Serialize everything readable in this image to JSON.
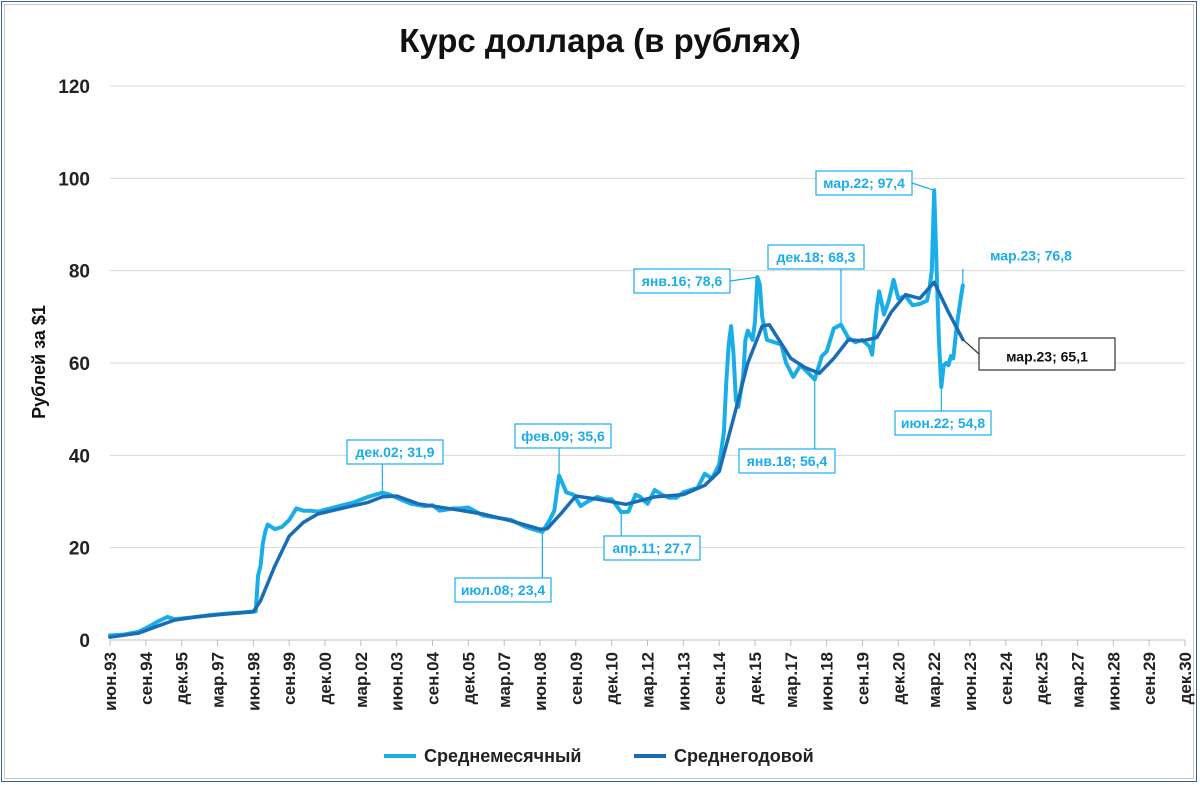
{
  "chart_data": {
    "type": "line",
    "title": "Курс доллара (в рублях)",
    "ylabel": "Рублей за $1",
    "xlabel": "",
    "ylim": [
      0,
      120
    ],
    "y_ticks": [
      0,
      20,
      40,
      60,
      80,
      100,
      120
    ],
    "x_range": [
      "1993-06",
      "2030-12"
    ],
    "x_ticks": [
      "июн.93",
      "сен.94",
      "дек.95",
      "мар.97",
      "июн.98",
      "сен.99",
      "дек.00",
      "мар.02",
      "июн.03",
      "сен.04",
      "дек.05",
      "мар.07",
      "июн.08",
      "сен.09",
      "дек.10",
      "мар.12",
      "июн.13",
      "сен.14",
      "дек.15",
      "мар.17",
      "июн.18",
      "сен.19",
      "дек.20",
      "мар.22",
      "июн.23",
      "сен.24",
      "дек.25",
      "мар.27",
      "июн.28",
      "сен.29",
      "дек.30"
    ],
    "grid": "horizontal",
    "legend_position": "bottom",
    "colors": {
      "monthly": "#1aaee8",
      "yearly": "#1a6db5",
      "axis": "#d9d9d9"
    },
    "series": [
      {
        "name": "Среднемесячный",
        "color": "#1aaee8",
        "points": [
          [
            "1993-06",
            1.0
          ],
          [
            "1993-12",
            1.2
          ],
          [
            "1994-06",
            1.8
          ],
          [
            "1994-10",
            2.8
          ],
          [
            "1995-02",
            4.0
          ],
          [
            "1995-06",
            5.0
          ],
          [
            "1995-09",
            4.5
          ],
          [
            "1996-03",
            4.8
          ],
          [
            "1996-12",
            5.4
          ],
          [
            "1997-06",
            5.7
          ],
          [
            "1997-12",
            5.9
          ],
          [
            "1998-05",
            6.1
          ],
          [
            "1998-07",
            6.2
          ],
          [
            "1998-08",
            14.0
          ],
          [
            "1998-09",
            16.0
          ],
          [
            "1998-10",
            21.0
          ],
          [
            "1998-11",
            23.5
          ],
          [
            "1998-12",
            25.0
          ],
          [
            "1999-03",
            24.0
          ],
          [
            "1999-06",
            24.5
          ],
          [
            "1999-09",
            26.0
          ],
          [
            "1999-12",
            28.5
          ],
          [
            "2000-03",
            28.0
          ],
          [
            "2000-06",
            28.0
          ],
          [
            "2000-09",
            27.8
          ],
          [
            "2000-12",
            28.2
          ],
          [
            "2001-06",
            29.0
          ],
          [
            "2001-12",
            29.8
          ],
          [
            "2002-06",
            31.0
          ],
          [
            "2002-12",
            31.9
          ],
          [
            "2003-03",
            31.5
          ],
          [
            "2003-06",
            30.8
          ],
          [
            "2003-12",
            29.5
          ],
          [
            "2004-06",
            29.0
          ],
          [
            "2004-09",
            29.2
          ],
          [
            "2004-12",
            28.0
          ],
          [
            "2005-06",
            28.5
          ],
          [
            "2005-09",
            28.5
          ],
          [
            "2005-12",
            28.7
          ],
          [
            "2006-06",
            27.0
          ],
          [
            "2006-12",
            26.5
          ],
          [
            "2007-06",
            26.0
          ],
          [
            "2007-12",
            24.5
          ],
          [
            "2008-03",
            24.0
          ],
          [
            "2008-07",
            23.4
          ],
          [
            "2008-10",
            26.0
          ],
          [
            "2008-12",
            28.0
          ],
          [
            "2009-02",
            35.6
          ],
          [
            "2009-05",
            32.0
          ],
          [
            "2009-08",
            31.5
          ],
          [
            "2009-11",
            29.0
          ],
          [
            "2010-02",
            30.0
          ],
          [
            "2010-06",
            31.0
          ],
          [
            "2010-09",
            30.5
          ],
          [
            "2010-12",
            30.5
          ],
          [
            "2011-04",
            27.7
          ],
          [
            "2011-07",
            27.8
          ],
          [
            "2011-10",
            31.5
          ],
          [
            "2011-12",
            31.0
          ],
          [
            "2012-03",
            29.5
          ],
          [
            "2012-06",
            32.5
          ],
          [
            "2012-09",
            31.5
          ],
          [
            "2012-12",
            30.8
          ],
          [
            "2013-03",
            30.8
          ],
          [
            "2013-06",
            32.0
          ],
          [
            "2013-09",
            32.5
          ],
          [
            "2013-12",
            33.0
          ],
          [
            "2014-03",
            36.0
          ],
          [
            "2014-06",
            35.0
          ],
          [
            "2014-09",
            38.0
          ],
          [
            "2014-11",
            45.0
          ],
          [
            "2014-12",
            56.0
          ],
          [
            "2015-01",
            64.0
          ],
          [
            "2015-02",
            68.0
          ],
          [
            "2015-03",
            62.0
          ],
          [
            "2015-04",
            52.0
          ],
          [
            "2015-05",
            50.5
          ],
          [
            "2015-07",
            57.0
          ],
          [
            "2015-08",
            65.0
          ],
          [
            "2015-09",
            67.0
          ],
          [
            "2015-11",
            65.0
          ],
          [
            "2015-12",
            69.0
          ],
          [
            "2016-01",
            78.6
          ],
          [
            "2016-02",
            77.0
          ],
          [
            "2016-03",
            70.0
          ],
          [
            "2016-05",
            65.0
          ],
          [
            "2016-08",
            64.5
          ],
          [
            "2016-11",
            64.0
          ],
          [
            "2017-01",
            60.0
          ],
          [
            "2017-04",
            57.0
          ],
          [
            "2017-07",
            59.5
          ],
          [
            "2017-10",
            58.0
          ],
          [
            "2018-01",
            56.4
          ],
          [
            "2018-04",
            61.5
          ],
          [
            "2018-06",
            62.5
          ],
          [
            "2018-09",
            67.5
          ],
          [
            "2018-12",
            68.3
          ],
          [
            "2019-03",
            65.5
          ],
          [
            "2019-06",
            64.5
          ],
          [
            "2019-09",
            65.0
          ],
          [
            "2019-12",
            63.5
          ],
          [
            "2020-01",
            61.8
          ],
          [
            "2020-03",
            72.0
          ],
          [
            "2020-04",
            75.5
          ],
          [
            "2020-06",
            70.5
          ],
          [
            "2020-08",
            73.5
          ],
          [
            "2020-10",
            78.0
          ],
          [
            "2020-12",
            74.0
          ],
          [
            "2021-03",
            74.5
          ],
          [
            "2021-06",
            72.5
          ],
          [
            "2021-09",
            72.8
          ],
          [
            "2021-12",
            73.5
          ],
          [
            "2022-01",
            76.0
          ],
          [
            "2022-02",
            80.0
          ],
          [
            "2022-03",
            97.4
          ],
          [
            "2022-04",
            80.5
          ],
          [
            "2022-05",
            65.0
          ],
          [
            "2022-06",
            54.8
          ],
          [
            "2022-07",
            59.5
          ],
          [
            "2022-08",
            60.0
          ],
          [
            "2022-09",
            59.5
          ],
          [
            "2022-10",
            61.5
          ],
          [
            "2022-11",
            61.0
          ],
          [
            "2022-12",
            66.0
          ],
          [
            "2023-01",
            70.0
          ],
          [
            "2023-02",
            73.5
          ],
          [
            "2023-03",
            76.8
          ]
        ]
      },
      {
        "name": "Среднегодовой",
        "color": "#1a6db5",
        "points": [
          [
            "1993-06",
            0.6
          ],
          [
            "1994-06",
            1.5
          ],
          [
            "1995-03",
            3.2
          ],
          [
            "1995-09",
            4.3
          ],
          [
            "1996-06",
            5.0
          ],
          [
            "1997-06",
            5.6
          ],
          [
            "1998-06",
            6.1
          ],
          [
            "1998-09",
            8.5
          ],
          [
            "1999-03",
            16.0
          ],
          [
            "1999-09",
            22.5
          ],
          [
            "2000-03",
            25.5
          ],
          [
            "2000-09",
            27.3
          ],
          [
            "2001-06",
            28.4
          ],
          [
            "2002-06",
            29.8
          ],
          [
            "2002-12",
            31.0
          ],
          [
            "2003-06",
            31.2
          ],
          [
            "2004-03",
            29.5
          ],
          [
            "2005-06",
            28.3
          ],
          [
            "2006-06",
            27.3
          ],
          [
            "2007-06",
            25.8
          ],
          [
            "2008-06",
            24.0
          ],
          [
            "2008-09",
            24.1
          ],
          [
            "2009-03",
            27.5
          ],
          [
            "2009-09",
            31.2
          ],
          [
            "2010-06",
            30.5
          ],
          [
            "2011-06",
            29.4
          ],
          [
            "2012-06",
            31.0
          ],
          [
            "2013-06",
            31.5
          ],
          [
            "2014-03",
            33.5
          ],
          [
            "2014-09",
            36.5
          ],
          [
            "2015-03",
            48.0
          ],
          [
            "2015-09",
            60.0
          ],
          [
            "2016-03",
            68.0
          ],
          [
            "2016-06",
            68.3
          ],
          [
            "2017-03",
            61.0
          ],
          [
            "2017-09",
            59.0
          ],
          [
            "2018-03",
            57.8
          ],
          [
            "2018-09",
            61.0
          ],
          [
            "2019-03",
            65.0
          ],
          [
            "2019-09",
            64.8
          ],
          [
            "2020-03",
            65.5
          ],
          [
            "2020-09",
            71.0
          ],
          [
            "2021-03",
            74.8
          ],
          [
            "2021-09",
            74.0
          ],
          [
            "2022-03",
            77.5
          ],
          [
            "2022-09",
            71.0
          ],
          [
            "2023-03",
            65.1
          ]
        ]
      }
    ],
    "annotations": [
      {
        "label": "дек.02; 31,9",
        "x": "2002-12",
        "y": 31.9,
        "style": "monthly"
      },
      {
        "label": "фев.09; 35,6",
        "x": "2009-02",
        "y": 35.6,
        "style": "monthly"
      },
      {
        "label": "июл.08; 23,4",
        "x": "2008-07",
        "y": 23.4,
        "style": "monthly"
      },
      {
        "label": "апр.11; 27,7",
        "x": "2011-04",
        "y": 27.7,
        "style": "monthly"
      },
      {
        "label": "янв.16; 78,6",
        "x": "2016-01",
        "y": 78.6,
        "style": "monthly"
      },
      {
        "label": "дек.18; 68,3",
        "x": "2018-12",
        "y": 68.3,
        "style": "monthly"
      },
      {
        "label": "янв.18; 56,4",
        "x": "2018-01",
        "y": 56.4,
        "style": "monthly"
      },
      {
        "label": "мар.22; 97,4",
        "x": "2022-03",
        "y": 97.4,
        "style": "monthly"
      },
      {
        "label": "июн.22; 54,8",
        "x": "2022-06",
        "y": 54.8,
        "style": "monthly"
      },
      {
        "label": "мар.23; 76,8",
        "x": "2023-03",
        "y": 76.8,
        "style": "monthly-large"
      },
      {
        "label": "мар.23; 65,1",
        "x": "2023-03",
        "y": 65.1,
        "style": "yearly-large"
      }
    ]
  }
}
